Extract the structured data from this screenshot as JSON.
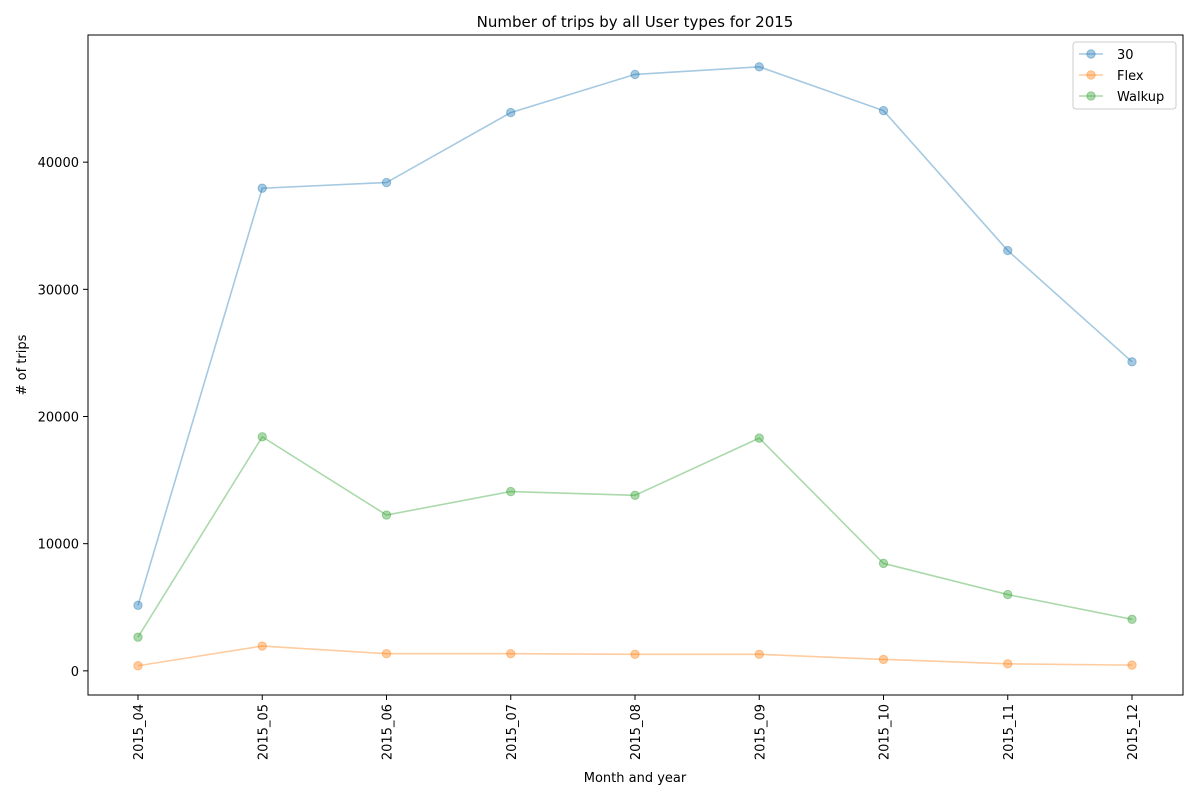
{
  "chart_data": {
    "type": "line",
    "title": "Number of trips by all User types for 2015",
    "xlabel": "Month and year",
    "ylabel": "# of trips",
    "categories": [
      "2015_04",
      "2015_05",
      "2015_06",
      "2015_07",
      "2015_08",
      "2015_09",
      "2015_10",
      "2015_11",
      "2015_12"
    ],
    "yticks": [
      0,
      10000,
      20000,
      30000,
      40000
    ],
    "ylim": [
      -1900,
      50000
    ],
    "grid": false,
    "legend_position": "top-right",
    "series": [
      {
        "name": "30",
        "color": "#1f77b4",
        "values": [
          5150,
          37950,
          38400,
          43900,
          46900,
          47500,
          44050,
          33050,
          24300
        ]
      },
      {
        "name": "Flex",
        "color": "#ff7f0e",
        "values": [
          400,
          1950,
          1350,
          1350,
          1300,
          1300,
          900,
          550,
          450
        ]
      },
      {
        "name": "Walkup",
        "color": "#2ca02c",
        "values": [
          2650,
          18400,
          12250,
          14100,
          13800,
          18300,
          8450,
          6000,
          4050
        ]
      }
    ]
  }
}
